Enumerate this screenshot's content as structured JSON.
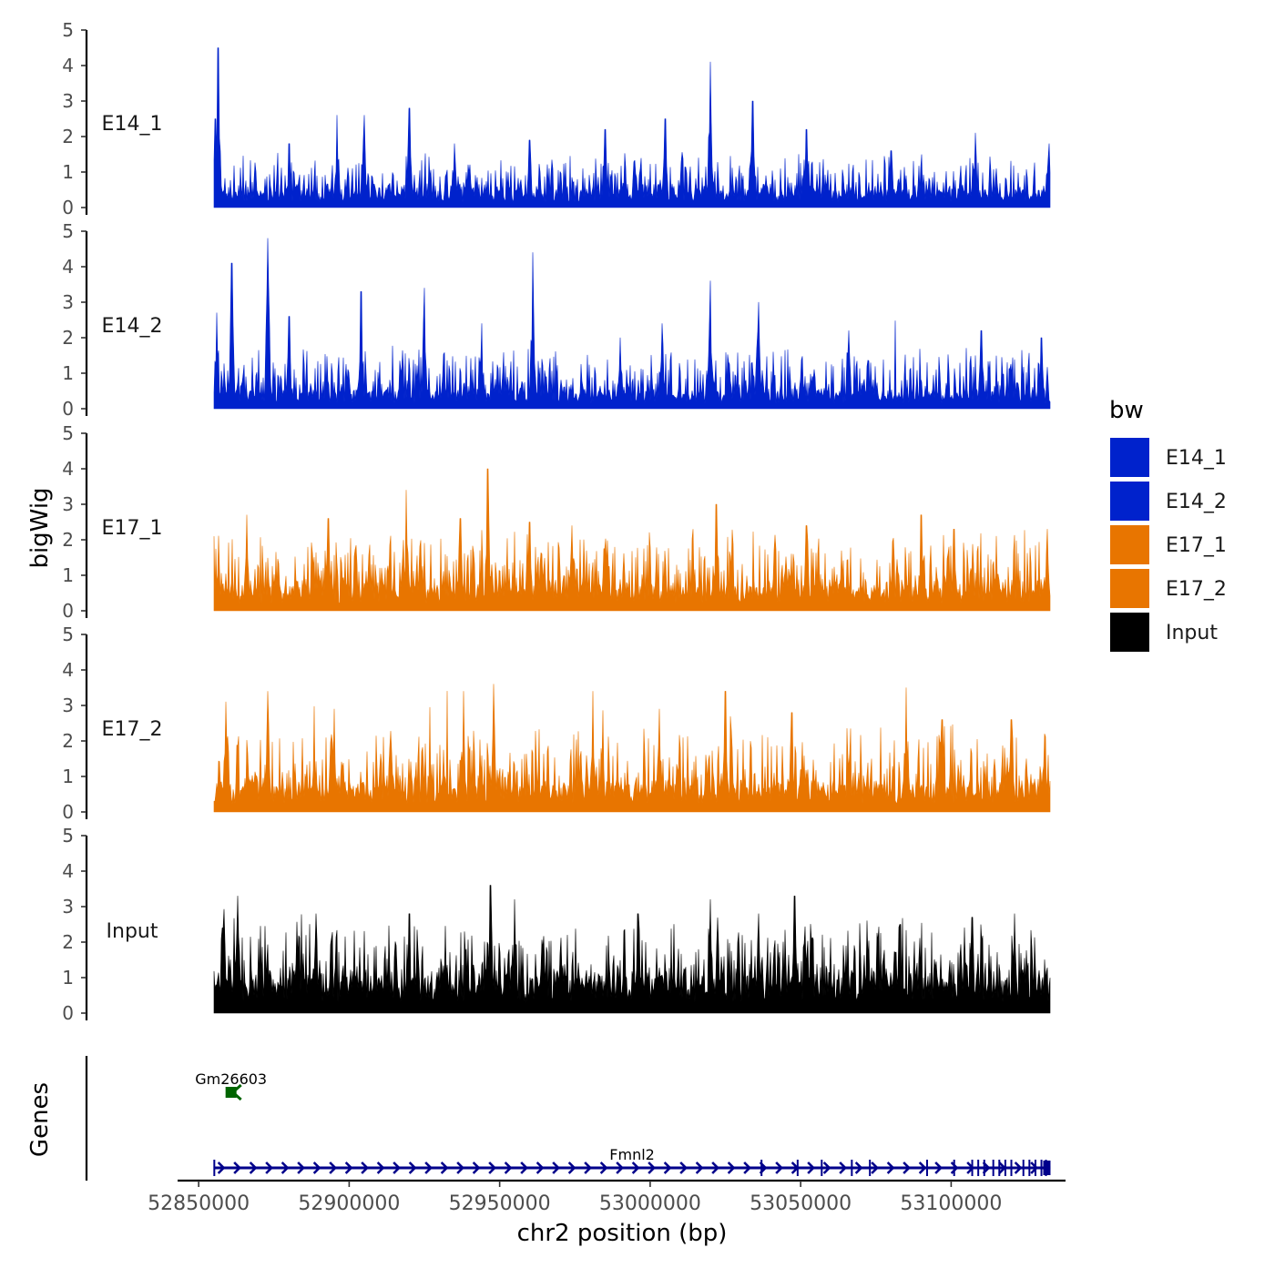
{
  "chart_data": {
    "type": "area",
    "chromosome_axis_title": "chr2 position (bp)",
    "y_axis_title": "bigWig",
    "genes_axis_title": "Genes",
    "x_range": [
      52843000,
      53138000
    ],
    "data_x_range": [
      52855000,
      53133000
    ],
    "x_ticks": [
      52850000,
      52900000,
      52950000,
      53000000,
      53050000,
      53100000
    ],
    "x_tick_labels": [
      "52850000",
      "52900000",
      "52950000",
      "53000000",
      "53050000",
      "53100000"
    ],
    "y_range": [
      0,
      5
    ],
    "y_ticks": [
      0,
      1,
      2,
      3,
      4,
      5
    ],
    "y_tick_labels": [
      "0",
      "1",
      "2",
      "3",
      "4",
      "5"
    ],
    "tracks": [
      {
        "name": "E14_1",
        "color": "#0022CC",
        "baseline": 0.35,
        "noise": 0.5,
        "seed": 11,
        "peaks": [
          [
            52856500,
            4.5
          ],
          [
            52855500,
            2.5
          ],
          [
            52920000,
            2.8
          ],
          [
            52905000,
            2.6
          ],
          [
            52896000,
            2.6
          ],
          [
            53005000,
            2.5
          ],
          [
            53020000,
            4.1
          ],
          [
            53034000,
            3.0
          ],
          [
            52985000,
            2.2
          ],
          [
            53052000,
            2.2
          ],
          [
            53108000,
            2.1
          ],
          [
            53132500,
            1.8
          ],
          [
            52935000,
            1.8
          ],
          [
            53080000,
            1.6
          ],
          [
            52880000,
            1.8
          ],
          [
            52960000,
            1.9
          ]
        ]
      },
      {
        "name": "E14_2",
        "color": "#0022CC",
        "baseline": 0.35,
        "noise": 0.6,
        "seed": 23,
        "peaks": [
          [
            52861000,
            4.1
          ],
          [
            52856000,
            2.7
          ],
          [
            52873000,
            4.8
          ],
          [
            52904000,
            3.3
          ],
          [
            52925000,
            3.4
          ],
          [
            52961000,
            4.4
          ],
          [
            53020000,
            3.6
          ],
          [
            53036000,
            3.0
          ],
          [
            52944000,
            2.4
          ],
          [
            52880000,
            2.6
          ],
          [
            53004000,
            2.4
          ],
          [
            53130000,
            2.0
          ],
          [
            53066000,
            2.2
          ],
          [
            53110000,
            2.2
          ],
          [
            52990000,
            2.0
          ]
        ]
      },
      {
        "name": "E17_1",
        "color": "#E87500",
        "baseline": 0.5,
        "noise": 0.75,
        "seed": 37,
        "peaks": [
          [
            52946000,
            4.0
          ],
          [
            52919000,
            3.4
          ],
          [
            52974000,
            2.4
          ],
          [
            53022000,
            3.0
          ],
          [
            53052000,
            2.4
          ],
          [
            53090000,
            2.7
          ],
          [
            53101000,
            2.3
          ],
          [
            52866000,
            2.7
          ],
          [
            52893000,
            2.6
          ],
          [
            52937000,
            2.6
          ],
          [
            53132000,
            2.3
          ],
          [
            52960000,
            2.5
          ],
          [
            53115000,
            2.1
          ]
        ]
      },
      {
        "name": "E17_2",
        "color": "#E87500",
        "baseline": 0.55,
        "noise": 0.8,
        "seed": 51,
        "peaks": [
          [
            52873000,
            3.4
          ],
          [
            52938000,
            3.4
          ],
          [
            52948000,
            3.6
          ],
          [
            52981000,
            3.4
          ],
          [
            53003000,
            2.9
          ],
          [
            53025000,
            3.4
          ],
          [
            53085000,
            3.5
          ],
          [
            53097000,
            2.6
          ],
          [
            52859000,
            3.1
          ],
          [
            52895000,
            2.9
          ],
          [
            53047000,
            2.8
          ],
          [
            53120000,
            2.6
          ],
          [
            53131000,
            2.2
          ]
        ]
      },
      {
        "name": "Input",
        "color": "#000000",
        "baseline": 0.75,
        "noise": 0.8,
        "seed": 67,
        "peaks": [
          [
            52947000,
            3.6
          ],
          [
            52863000,
            3.3
          ],
          [
            52955000,
            3.2
          ],
          [
            52996000,
            2.8
          ],
          [
            53020000,
            3.2
          ],
          [
            53036000,
            2.8
          ],
          [
            53048000,
            3.3
          ],
          [
            52889000,
            2.8
          ],
          [
            52920000,
            2.8
          ],
          [
            53121000,
            2.8
          ],
          [
            53107000,
            2.7
          ],
          [
            52858000,
            2.4
          ],
          [
            53072000,
            2.6
          ],
          [
            53083000,
            2.5
          ]
        ]
      }
    ],
    "legend": {
      "title": "bw",
      "position": "right",
      "entries": [
        {
          "label": "E14_1",
          "color": "#0022CC"
        },
        {
          "label": "E14_2",
          "color": "#0022CC"
        },
        {
          "label": "E17_1",
          "color": "#E87500"
        },
        {
          "label": "E17_2",
          "color": "#E87500"
        },
        {
          "label": "Input",
          "color": "#000000"
        }
      ]
    },
    "genes": [
      {
        "name": "Gm26603",
        "start": 52859500,
        "end": 52862000,
        "strand": "-",
        "row": 1,
        "color": "#006400"
      },
      {
        "name": "Fmnl2",
        "start": 52855000,
        "end": 53133000,
        "strand": "+",
        "row": 0,
        "color": "#00008B",
        "exons": [
          52855200,
          53037000,
          53049000,
          53057000,
          53067000,
          53073000,
          53092000,
          53101000,
          53107000,
          53109000,
          53111000,
          53114000,
          53116000,
          53118000,
          53120000,
          53124000,
          53126000,
          53128000,
          53130000,
          53131500
        ]
      }
    ]
  }
}
